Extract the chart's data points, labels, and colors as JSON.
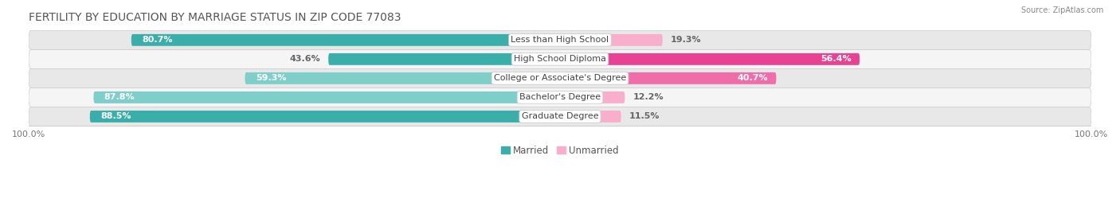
{
  "title": "FERTILITY BY EDUCATION BY MARRIAGE STATUS IN ZIP CODE 77083",
  "source": "Source: ZipAtlas.com",
  "categories": [
    "Less than High School",
    "High School Diploma",
    "College or Associate's Degree",
    "Bachelor's Degree",
    "Graduate Degree"
  ],
  "married": [
    80.7,
    43.6,
    59.3,
    87.8,
    88.5
  ],
  "unmarried": [
    19.3,
    56.4,
    40.7,
    12.2,
    11.5
  ],
  "married_color": "#3AAFA9",
  "married_color_light": "#7ECECA",
  "unmarried_color_strong": "#E84393",
  "unmarried_color_mid": "#F06DAA",
  "unmarried_color_light": "#F9AECB",
  "background_color": "#FFFFFF",
  "row_bg_color": "#EBEBEB",
  "title_fontsize": 10,
  "label_fontsize": 8,
  "category_fontsize": 8,
  "legend_fontsize": 8.5
}
